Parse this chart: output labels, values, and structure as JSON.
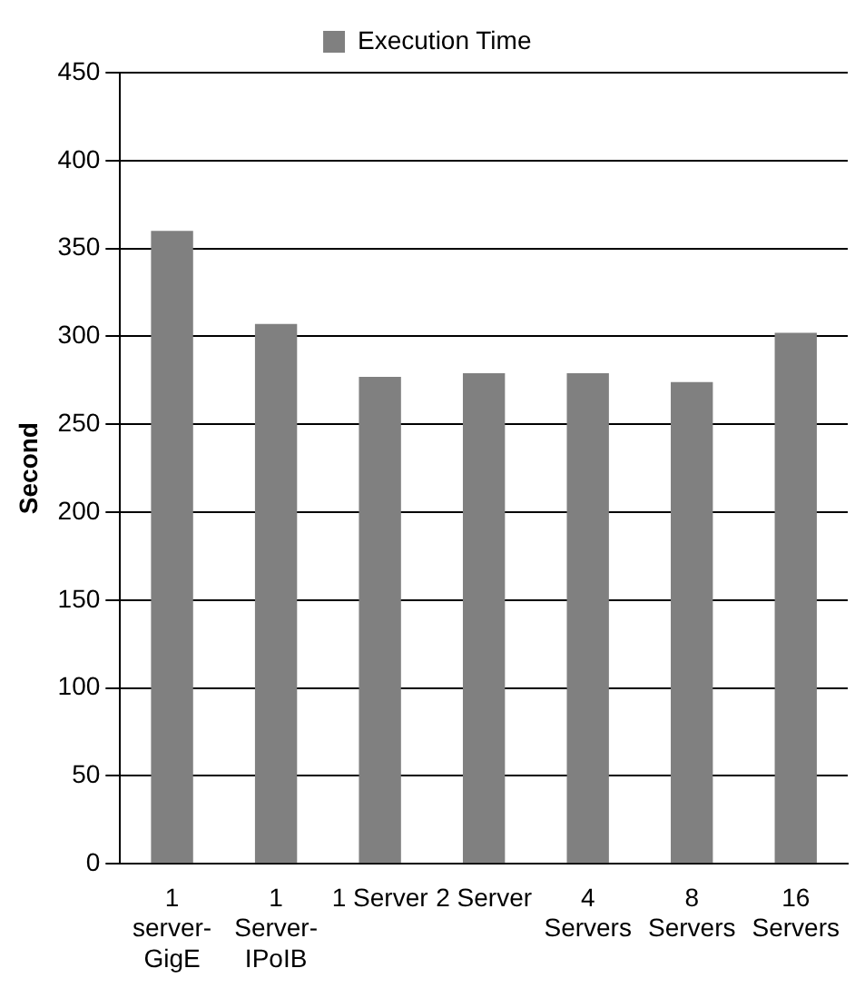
{
  "chart_data": {
    "type": "bar",
    "ylabel": "Second",
    "categories": [
      "1 server-GigE",
      "1 Server-IPoIB",
      "1 Server",
      "2 Server",
      "4 Servers",
      "8 Servers",
      "16 Servers"
    ],
    "series": [
      {
        "name": "Execution Time",
        "color": "#808080",
        "values": [
          360,
          307,
          277,
          279,
          279,
          274,
          302
        ]
      }
    ],
    "ylim": [
      0,
      450
    ],
    "yticks": [
      0,
      50,
      100,
      150,
      200,
      250,
      300,
      350,
      400,
      450
    ],
    "grid": "y",
    "legend": "top"
  }
}
